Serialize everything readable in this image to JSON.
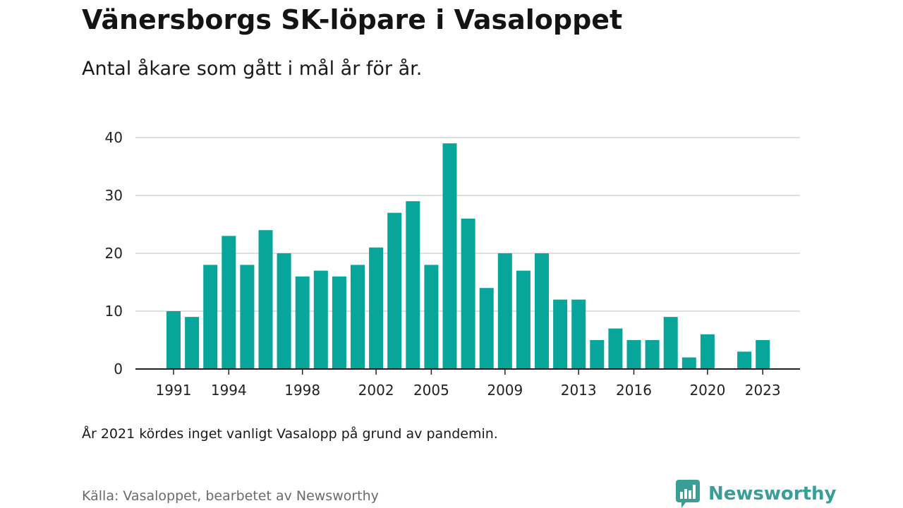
{
  "header": {
    "title": "Vänersborgs SK-löpare i Vasaloppet",
    "subtitle": "Antal åkare som gått i mål år för år."
  },
  "footer": {
    "note": "År 2021 kördes inget vanligt Vasalopp på grund av pandemin.",
    "source": "Källa: Vasaloppet, bearbetet av Newsworthy",
    "brand": "Newsworthy",
    "brand_icon": "newsworthy-logo-icon",
    "brand_color": "#3a9e96"
  },
  "chart_data": {
    "type": "bar",
    "title": "Vänersborgs SK-löpare i Vasaloppet",
    "subtitle": "Antal åkare som gått i mål år för år.",
    "xlabel": "",
    "ylabel": "",
    "bar_color": "#08a59a",
    "grid": true,
    "ylim": [
      0,
      40
    ],
    "yticks": [
      0,
      10,
      20,
      30,
      40
    ],
    "xticks": [
      1991,
      1994,
      1998,
      2002,
      2005,
      2009,
      2013,
      2016,
      2020,
      2023
    ],
    "categories": [
      1991,
      1992,
      1993,
      1994,
      1995,
      1996,
      1997,
      1998,
      1999,
      2000,
      2001,
      2002,
      2003,
      2004,
      2005,
      2006,
      2007,
      2008,
      2009,
      2010,
      2011,
      2012,
      2013,
      2014,
      2015,
      2016,
      2017,
      2018,
      2019,
      2020,
      2021,
      2022,
      2023
    ],
    "values": [
      10,
      9,
      18,
      23,
      18,
      24,
      20,
      16,
      17,
      16,
      18,
      21,
      27,
      29,
      18,
      39,
      26,
      14,
      20,
      17,
      20,
      12,
      12,
      5,
      7,
      5,
      5,
      9,
      2,
      6,
      null,
      3,
      5
    ]
  }
}
